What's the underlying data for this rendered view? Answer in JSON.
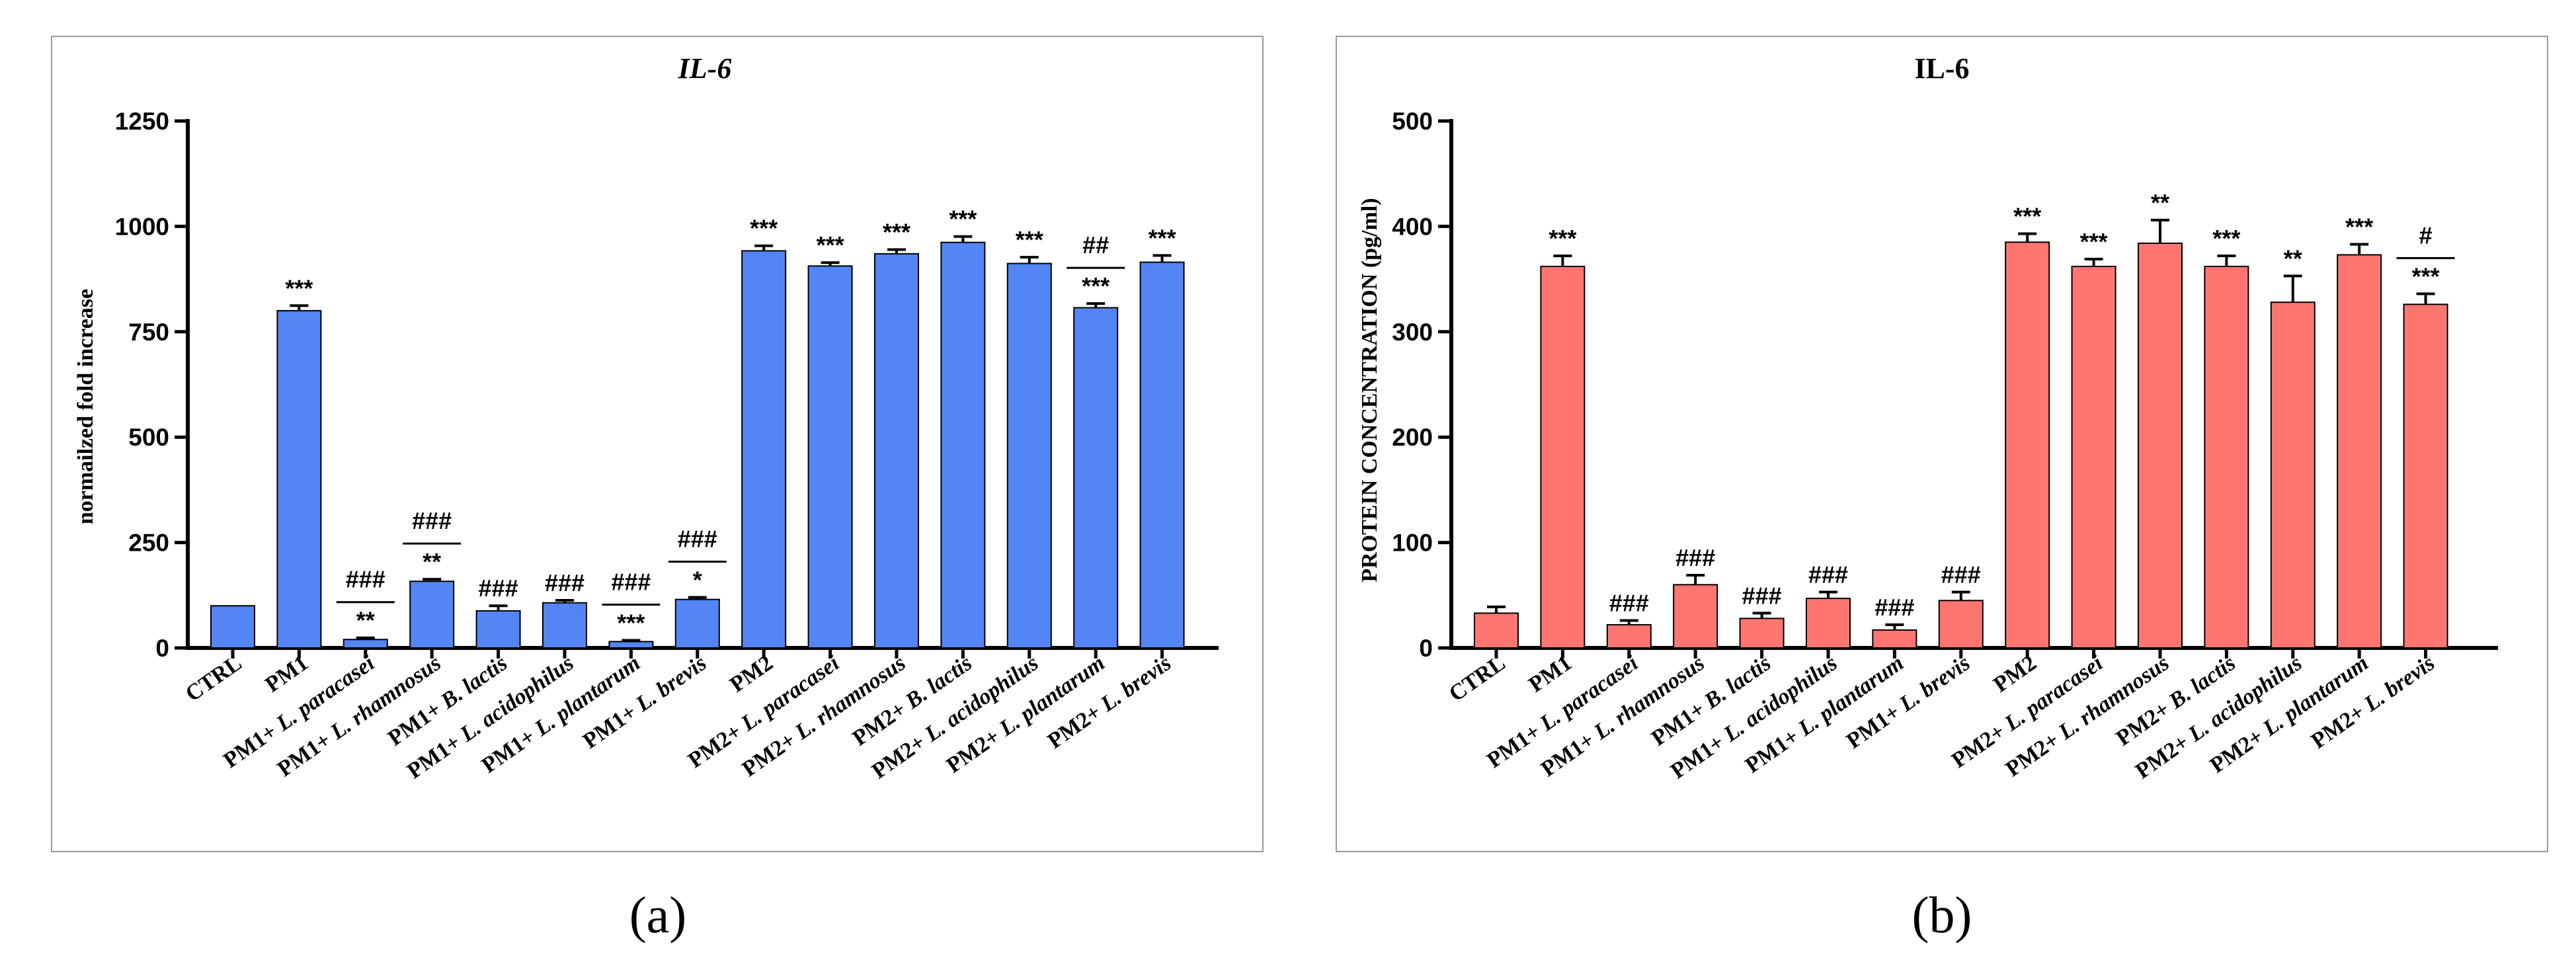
{
  "figure": {
    "panel_labels": [
      "(a)",
      "(b)"
    ]
  },
  "chart_data": [
    {
      "type": "bar",
      "title": "IL-6",
      "ylabel": "normailzed fold increase",
      "xlabel": "",
      "ylim": [
        0,
        1250
      ],
      "yticks": [
        0,
        250,
        500,
        750,
        1000,
        1250
      ],
      "color": "#5485F5",
      "categories": [
        {
          "prefix": "CTRL",
          "species": ""
        },
        {
          "prefix": "PM1",
          "species": ""
        },
        {
          "prefix": "PM1+ ",
          "species": "L. paracasei"
        },
        {
          "prefix": "PM1+ ",
          "species": "L. rhamnosus"
        },
        {
          "prefix": "PM1+ ",
          "species": "B. lactis"
        },
        {
          "prefix": "PM1+ ",
          "species": "L. acidophilus"
        },
        {
          "prefix": "PM1+ ",
          "species": "L. plantarum"
        },
        {
          "prefix": "PM1+ ",
          "species": "L. brevis"
        },
        {
          "prefix": "PM2",
          "species": ""
        },
        {
          "prefix": "PM2+ ",
          "species": "L. paracasei"
        },
        {
          "prefix": "PM2+ ",
          "species": "L. rhamnosus"
        },
        {
          "prefix": "PM2+ ",
          "species": "B. lactis"
        },
        {
          "prefix": "PM2+ ",
          "species": "L. acidophilus"
        },
        {
          "prefix": "PM2+ ",
          "species": "L. plantarum"
        },
        {
          "prefix": "PM2+ ",
          "species": "L. brevis"
        }
      ],
      "values": [
        100,
        800,
        20,
        158,
        88,
        107,
        15,
        115,
        942,
        906,
        935,
        962,
        912,
        807,
        915
      ],
      "errors": [
        0,
        12,
        4,
        5,
        12,
        6,
        3,
        5,
        12,
        8,
        10,
        14,
        15,
        10,
        16
      ],
      "significance": [
        [],
        [
          "***"
        ],
        [
          "**",
          "###"
        ],
        [
          "**",
          "###"
        ],
        [
          "###"
        ],
        [
          "###"
        ],
        [
          "***",
          "###"
        ],
        [
          "*",
          "###"
        ],
        [
          "***"
        ],
        [
          "***"
        ],
        [
          "***"
        ],
        [
          "***"
        ],
        [
          "***"
        ],
        [
          "***",
          "##"
        ],
        [
          "***"
        ]
      ]
    },
    {
      "type": "bar",
      "title": "IL-6",
      "ylabel": "PROTEIN CONCENTRATION (pg/ml)",
      "xlabel": "",
      "ylim": [
        0,
        500
      ],
      "yticks": [
        0,
        100,
        200,
        300,
        400,
        500
      ],
      "color": "#FF7671",
      "categories": [
        {
          "prefix": "CTRL",
          "species": ""
        },
        {
          "prefix": "PM1",
          "species": ""
        },
        {
          "prefix": "PM1+ ",
          "species": "L. paracasei"
        },
        {
          "prefix": "PM1+ ",
          "species": "L. rhamnosus"
        },
        {
          "prefix": "PM1+ ",
          "species": "B. lactis"
        },
        {
          "prefix": "PM1+ ",
          "species": "L. acidophilus"
        },
        {
          "prefix": "PM1+ ",
          "species": "L. plantarum"
        },
        {
          "prefix": "PM1+ ",
          "species": "L. brevis"
        },
        {
          "prefix": "PM2",
          "species": ""
        },
        {
          "prefix": "PM2+ ",
          "species": "L. paracasei"
        },
        {
          "prefix": "PM2+ ",
          "species": "L. rhamnosus"
        },
        {
          "prefix": "PM2+ ",
          "species": "B. lactis"
        },
        {
          "prefix": "PM2+ ",
          "species": "L. acidophilus"
        },
        {
          "prefix": "PM2+ ",
          "species": "L. plantarum"
        },
        {
          "prefix": "PM2+ ",
          "species": "L. brevis"
        }
      ],
      "values": [
        33,
        362,
        22,
        60,
        28,
        47,
        17,
        45,
        385,
        362,
        384,
        362,
        328,
        373,
        326
      ],
      "errors": [
        6,
        10,
        4,
        9,
        5,
        6,
        5,
        8,
        8,
        7,
        22,
        10,
        25,
        10,
        10
      ],
      "significance": [
        [],
        [
          "***"
        ],
        [
          "###"
        ],
        [
          "###"
        ],
        [
          "###"
        ],
        [
          "###"
        ],
        [
          "###"
        ],
        [
          "###"
        ],
        [
          "***"
        ],
        [
          "***"
        ],
        [
          "**"
        ],
        [
          "***"
        ],
        [
          "**"
        ],
        [
          "***"
        ],
        [
          "***",
          "#"
        ]
      ]
    }
  ]
}
